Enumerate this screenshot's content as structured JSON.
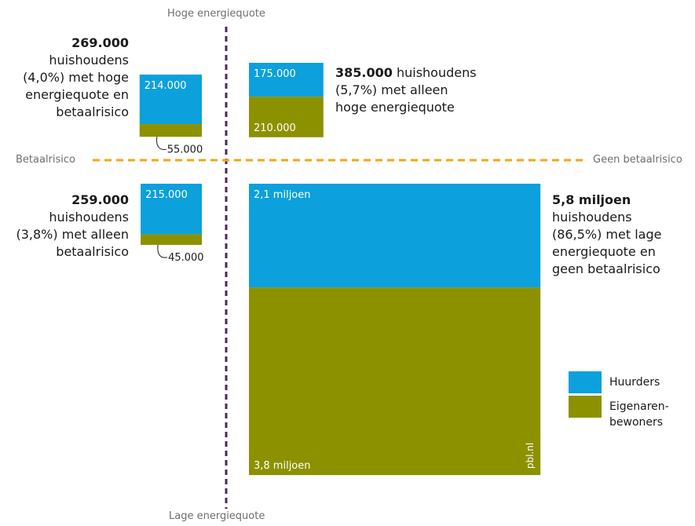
{
  "axes": {
    "top": "Hoge energiequote",
    "bottom": "Lage energiequote",
    "left": "Betaalrisico",
    "right": "Geen betaalrisico"
  },
  "colors": {
    "huurders": "#0ca0dd",
    "eigenaren": "#8c9100",
    "vertical_line": "#4a2a5a",
    "horizontal_line": "#f2a51c"
  },
  "quadrants": {
    "top_left": {
      "bold": "269.000",
      "text_lines": [
        "huishoudens",
        "(4,0%) met hoge",
        "energiequote en",
        "betaalrisico"
      ]
    },
    "top_right": {
      "bold": "385.000",
      "text_lines": [
        " huishoudens",
        "(5,7%) met alleen",
        "hoge energiequote"
      ]
    },
    "bottom_left": {
      "bold": "259.000",
      "text_lines": [
        "huishoudens",
        "(3,8%) met alleen",
        "betaalrisico"
      ]
    },
    "bottom_right": {
      "bold": "5,8 miljoen",
      "text_lines": [
        "huishoudens",
        "(86,5%) met lage",
        "energiequote en",
        "geen betaalrisico"
      ]
    }
  },
  "legend": [
    {
      "label": "Huurders",
      "color": "#0ca0dd"
    },
    {
      "label": "Eigenaren-\nbewoners",
      "color": "#8c9100"
    }
  ],
  "watermark": "pbl.nl",
  "chart_data": {
    "type": "bar",
    "subtype": "stacked-area-squares",
    "series_names": [
      "Huurders",
      "Eigenaren-bewoners"
    ],
    "groups": [
      {
        "quadrant": "Hoge energiequote, betaalrisico",
        "total": 269000,
        "total_label": "269.000",
        "huurders": 214000,
        "huurders_label": "214.000",
        "eigenaren": 55000,
        "eigenaren_label": "55.000",
        "share": "4,0%"
      },
      {
        "quadrant": "Hoge energiequote, geen betaalrisico",
        "total": 385000,
        "total_label": "385.000",
        "huurders": 175000,
        "huurders_label": "175.000",
        "eigenaren": 210000,
        "eigenaren_label": "210.000",
        "share": "5,7%"
      },
      {
        "quadrant": "Lage energiequote, betaalrisico",
        "total": 259000,
        "total_label": "259.000",
        "huurders": 215000,
        "huurders_label": "215.000",
        "eigenaren": 45000,
        "eigenaren_label": "45.000",
        "share": "3,8%"
      },
      {
        "quadrant": "Lage energiequote, geen betaalrisico",
        "total": 5800000,
        "total_label": "5,8 miljoen",
        "huurders": 2100000,
        "huurders_label": "2,1 miljoen",
        "eigenaren": 3800000,
        "eigenaren_label": "3,8 miljoen",
        "share": "86,5%"
      }
    ]
  }
}
